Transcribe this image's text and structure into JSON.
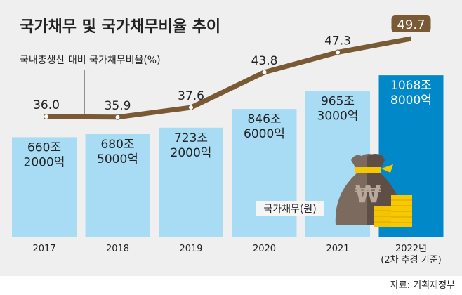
{
  "chart_data": {
    "type": "bar+line",
    "title": "국가채무 및 국가채무비율 추이",
    "categories": [
      "2017",
      "2018",
      "2019",
      "2020",
      "2021",
      "2022년"
    ],
    "category_sublabel": "(2차 추경 기준)",
    "series": [
      {
        "name": "국가채무(원)",
        "type": "bar",
        "values": [
          660.2,
          680.5,
          723.2,
          846.6,
          965.3,
          1068.8
        ],
        "labels": [
          [
            "660조",
            "2000억"
          ],
          [
            "680조",
            "5000억"
          ],
          [
            "723조",
            "2000억"
          ],
          [
            "846조",
            "6000억"
          ],
          [
            "965조",
            "3000억"
          ],
          [
            "1068조",
            "8000억"
          ]
        ]
      },
      {
        "name": "국내총생산 대비 국가채무비율(%)",
        "type": "line",
        "values": [
          36.0,
          35.9,
          37.6,
          43.8,
          47.3,
          49.7
        ],
        "labels": [
          "36.0",
          "35.9",
          "37.6",
          "43.8",
          "47.3",
          "49.7"
        ]
      }
    ],
    "source": "자료: 기획재정부",
    "colors": {
      "bar": "#a8dcf5",
      "bar_highlight": "#0088c8",
      "line": "#7a5a35",
      "background": "#efefef"
    }
  }
}
